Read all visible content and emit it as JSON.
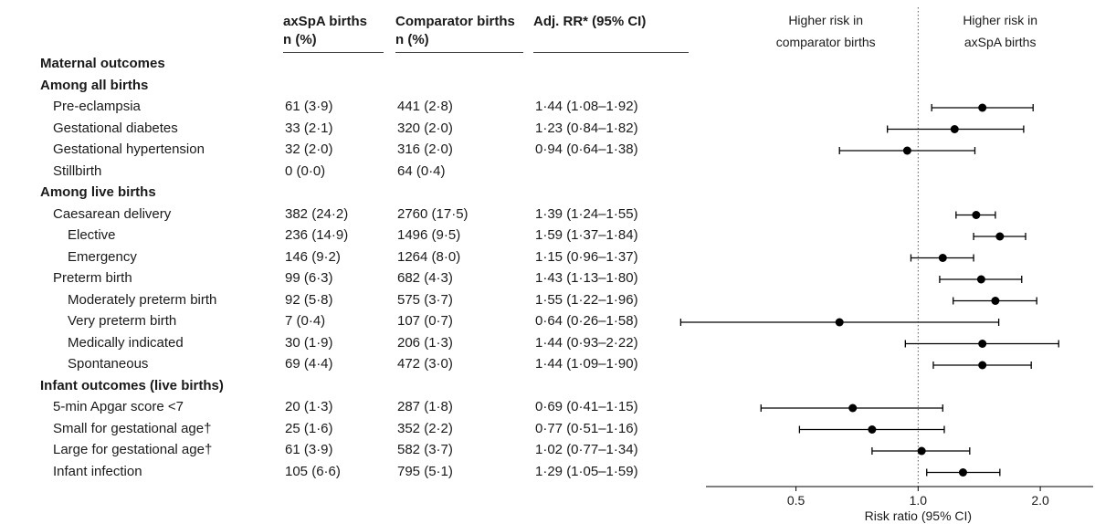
{
  "headers": {
    "col1": [
      "axSpA births",
      "n (%)"
    ],
    "col2": [
      "Comparator births",
      "n (%)"
    ],
    "col3": [
      "",
      "Adj. RR* (95% CI)"
    ]
  },
  "rows": [
    {
      "label": "Maternal outcomes",
      "level": 0,
      "bold": true,
      "a": "",
      "c": "",
      "rr": ""
    },
    {
      "label": "Among all births",
      "level": 0,
      "bold": true,
      "a": "",
      "c": "",
      "rr": ""
    },
    {
      "label": "Pre-eclampsia",
      "level": 1,
      "bold": false,
      "a": "61 (3·9)",
      "c": "441 (2·8)",
      "rr": "1·44 (1·08–1·92)"
    },
    {
      "label": "Gestational diabetes",
      "level": 1,
      "bold": false,
      "a": "33 (2·1)",
      "c": "320 (2·0)",
      "rr": "1·23 (0·84–1·82)"
    },
    {
      "label": "Gestational hypertension",
      "level": 1,
      "bold": false,
      "a": "32 (2·0)",
      "c": "316 (2·0)",
      "rr": "0·94 (0·64–1·38)"
    },
    {
      "label": "Stillbirth",
      "level": 1,
      "bold": false,
      "a": "0 (0·0)",
      "c": "64 (0·4)",
      "rr": ""
    },
    {
      "label": "Among live births",
      "level": 0,
      "bold": true,
      "a": "",
      "c": "",
      "rr": ""
    },
    {
      "label": "Caesarean delivery",
      "level": 1,
      "bold": false,
      "a": "382 (24·2)",
      "c": "2760 (17·5)",
      "rr": "1·39 (1·24–1·55)"
    },
    {
      "label": "Elective",
      "level": 2,
      "bold": false,
      "a": "236 (14·9)",
      "c": "1496 (9·5)",
      "rr": "1·59 (1·37–1·84)"
    },
    {
      "label": "Emergency",
      "level": 2,
      "bold": false,
      "a": "146 (9·2)",
      "c": "1264 (8·0)",
      "rr": "1·15 (0·96–1·37)"
    },
    {
      "label": "Preterm birth",
      "level": 1,
      "bold": false,
      "a": "99 (6·3)",
      "c": "682 (4·3)",
      "rr": "1·43 (1·13–1·80)"
    },
    {
      "label": "Moderately preterm birth",
      "level": 2,
      "bold": false,
      "a": "92 (5·8)",
      "c": "575 (3·7)",
      "rr": "1·55 (1·22–1·96)"
    },
    {
      "label": "Very preterm birth",
      "level": 2,
      "bold": false,
      "a": "7 (0·4)",
      "c": "107 (0·7)",
      "rr": "0·64 (0·26–1·58)"
    },
    {
      "label": "Medically indicated",
      "level": 2,
      "bold": false,
      "a": "30 (1·9)",
      "c": "206 (1·3)",
      "rr": "1·44 (0·93–2·22)"
    },
    {
      "label": "Spontaneous",
      "level": 2,
      "bold": false,
      "a": "69 (4·4)",
      "c": "472 (3·0)",
      "rr": "1·44 (1·09–1·90)"
    },
    {
      "label": "Infant outcomes (live births)",
      "level": 0,
      "bold": true,
      "a": "",
      "c": "",
      "rr": ""
    },
    {
      "label": "5-min Apgar score <7",
      "level": 1,
      "bold": false,
      "a": "20 (1·3)",
      "c": "287 (1·8)",
      "rr": "0·69 (0·41–1·15)"
    },
    {
      "label": "Small for gestational age†",
      "level": 1,
      "bold": false,
      "a": "25 (1·6)",
      "c": "352 (2·2)",
      "rr": "0·77 (0·51–1·16)"
    },
    {
      "label": "Large for gestational age†",
      "level": 1,
      "bold": false,
      "a": "61 (3·9)",
      "c": "582 (3·7)",
      "rr": "1·02 (0·77–1·34)"
    },
    {
      "label": "Infant infection",
      "level": 1,
      "bold": false,
      "a": "105 (6·6)",
      "c": "795 (5·1)",
      "rr": "1·29 (1·05–1·59)"
    }
  ],
  "chart_data": {
    "type": "scatter",
    "subtype": "forest-plot",
    "xlabel": "Risk ratio (95% CI)",
    "xscale": "log",
    "xlim": [
      0.3,
      2.7
    ],
    "xticks": [
      0.5,
      1.0,
      2.0
    ],
    "xtick_labels": [
      "0.5",
      "1.0",
      "2.0"
    ],
    "reference_line": 1.0,
    "annotations": {
      "left": [
        "Higher risk in",
        "comparator births"
      ],
      "right": [
        "Higher risk in",
        "axSpA births"
      ]
    },
    "points": [
      {
        "label": "Pre-eclampsia",
        "rr": 1.44,
        "lo": 1.08,
        "hi": 1.92
      },
      {
        "label": "Gestational diabetes",
        "rr": 1.23,
        "lo": 0.84,
        "hi": 1.82
      },
      {
        "label": "Gestational hypertension",
        "rr": 0.94,
        "lo": 0.64,
        "hi": 1.38
      },
      {
        "label": "Caesarean delivery",
        "rr": 1.39,
        "lo": 1.24,
        "hi": 1.55
      },
      {
        "label": "Elective",
        "rr": 1.59,
        "lo": 1.37,
        "hi": 1.84
      },
      {
        "label": "Emergency",
        "rr": 1.15,
        "lo": 0.96,
        "hi": 1.37
      },
      {
        "label": "Preterm birth",
        "rr": 1.43,
        "lo": 1.13,
        "hi": 1.8
      },
      {
        "label": "Moderately preterm birth",
        "rr": 1.55,
        "lo": 1.22,
        "hi": 1.96
      },
      {
        "label": "Very preterm birth",
        "rr": 0.64,
        "lo": 0.26,
        "hi": 1.58
      },
      {
        "label": "Medically indicated",
        "rr": 1.44,
        "lo": 0.93,
        "hi": 2.22
      },
      {
        "label": "Spontaneous",
        "rr": 1.44,
        "lo": 1.09,
        "hi": 1.9
      },
      {
        "label": "5-min Apgar score <7",
        "rr": 0.69,
        "lo": 0.41,
        "hi": 1.15
      },
      {
        "label": "Small for gestational age†",
        "rr": 0.77,
        "lo": 0.51,
        "hi": 1.16
      },
      {
        "label": "Large for gestational age†",
        "rr": 1.02,
        "lo": 0.77,
        "hi": 1.34
      },
      {
        "label": "Infant infection",
        "rr": 1.29,
        "lo": 1.05,
        "hi": 1.59
      }
    ]
  }
}
